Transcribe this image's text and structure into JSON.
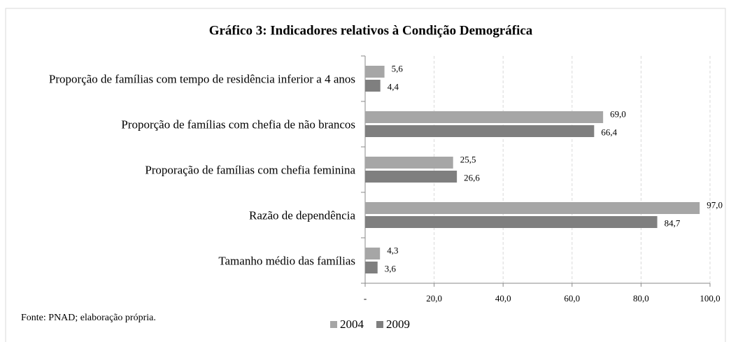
{
  "chart_data": {
    "type": "bar",
    "orientation": "horizontal",
    "title": "Gráfico 3: Indicadores relativos à Condição Demográfica",
    "categories": [
      "Proporção de famílias com tempo de residência inferior a 4 anos",
      "Proporção de famílias com chefia de não brancos",
      "Proporação de famílias com chefia feminina",
      "Razão de dependência",
      "Tamanho médio das famílias"
    ],
    "series": [
      {
        "name": "2004",
        "color": "#a6a6a6",
        "values": [
          5.6,
          69.0,
          25.5,
          97.0,
          4.3
        ],
        "value_labels": [
          "5,6",
          "69,0",
          "25,5",
          "97,0",
          "4,3"
        ]
      },
      {
        "name": "2009",
        "color": "#7f7f7f",
        "values": [
          4.4,
          66.4,
          26.6,
          84.7,
          3.6
        ],
        "value_labels": [
          "4,4",
          "66,4",
          "26,6",
          "84,7",
          "3,6"
        ]
      }
    ],
    "xlim": [
      0,
      100
    ],
    "xticks": [
      {
        "value": 0,
        "label": "-"
      },
      {
        "value": 20,
        "label": "20,0"
      },
      {
        "value": 40,
        "label": "40,0"
      },
      {
        "value": 60,
        "label": "60,0"
      },
      {
        "value": 80,
        "label": "80,0"
      },
      {
        "value": 100,
        "label": "100,0"
      }
    ],
    "grid": true,
    "legend": "bottom",
    "source": "Fonte: PNAD; elaboração própria."
  }
}
